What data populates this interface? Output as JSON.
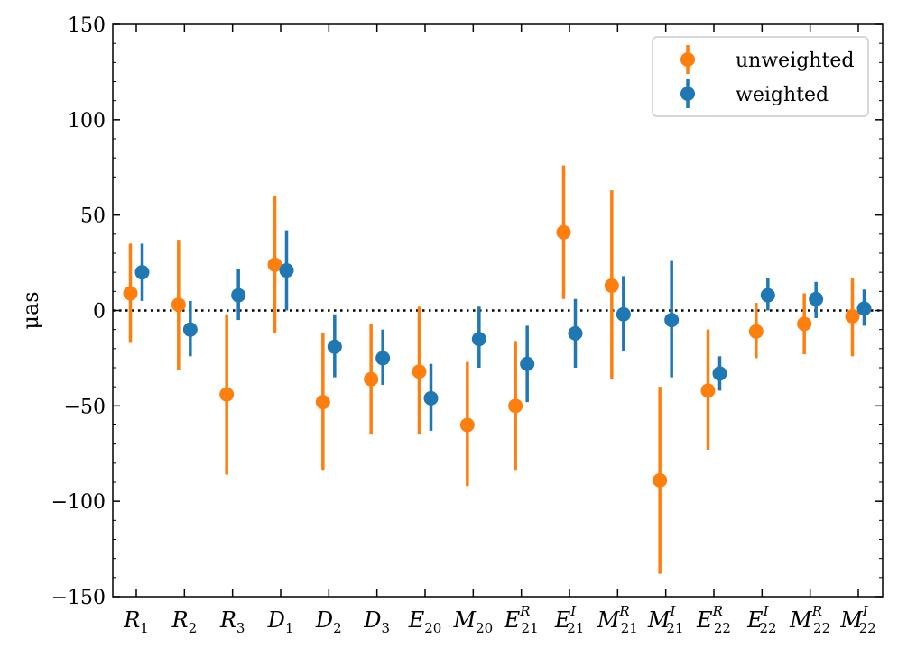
{
  "chart_data": {
    "type": "errorbar",
    "title": "",
    "xlabel": "",
    "ylabel": "μas",
    "ylim": [
      -150,
      150
    ],
    "yticks": [
      -150,
      -100,
      -50,
      0,
      50,
      100,
      150
    ],
    "ytick_labels": [
      "−150",
      "−100",
      "−50",
      "0",
      "50",
      "100",
      "150"
    ],
    "grid": false,
    "reference_line": 0,
    "legend_position": "top-right",
    "categories": [
      {
        "label": "R1",
        "base": "R",
        "sub": "1",
        "sup": ""
      },
      {
        "label": "R2",
        "base": "R",
        "sub": "2",
        "sup": ""
      },
      {
        "label": "R3",
        "base": "R",
        "sub": "3",
        "sup": ""
      },
      {
        "label": "D1",
        "base": "D",
        "sub": "1",
        "sup": ""
      },
      {
        "label": "D2",
        "base": "D",
        "sub": "2",
        "sup": ""
      },
      {
        "label": "D3",
        "base": "D",
        "sub": "3",
        "sup": ""
      },
      {
        "label": "E20",
        "base": "E",
        "sub": "20",
        "sup": ""
      },
      {
        "label": "M20",
        "base": "M",
        "sub": "20",
        "sup": ""
      },
      {
        "label": "E21R",
        "base": "E",
        "sub": "21",
        "sup": "R"
      },
      {
        "label": "E21I",
        "base": "E",
        "sub": "21",
        "sup": "I"
      },
      {
        "label": "M21R",
        "base": "M",
        "sub": "21",
        "sup": "R"
      },
      {
        "label": "M21I",
        "base": "M",
        "sub": "21",
        "sup": "I"
      },
      {
        "label": "E22R",
        "base": "E",
        "sub": "22",
        "sup": "R"
      },
      {
        "label": "E22I",
        "base": "E",
        "sub": "22",
        "sup": "I"
      },
      {
        "label": "M22R",
        "base": "M",
        "sub": "22",
        "sup": "R"
      },
      {
        "label": "M22I",
        "base": "M",
        "sub": "22",
        "sup": "I"
      }
    ],
    "series": [
      {
        "name": "unweighted",
        "color": "#ff7f0e",
        "values": [
          9,
          3,
          -44,
          24,
          -48,
          -36,
          -32,
          -60,
          -50,
          41,
          13,
          -89,
          -42,
          -11,
          -7,
          -3
        ],
        "lower": [
          -17,
          -31,
          -86,
          -12,
          -84,
          -65,
          -65,
          -92,
          -84,
          6,
          -36,
          -138,
          -73,
          -25,
          -23,
          -24
        ],
        "upper": [
          35,
          37,
          -2,
          60,
          -12,
          -7,
          2,
          -27,
          -16,
          76,
          63,
          -40,
          -10,
          4,
          9,
          17
        ]
      },
      {
        "name": "weighted",
        "color": "#1f77b4",
        "values": [
          20,
          -10,
          8,
          21,
          -19,
          -25,
          -46,
          -15,
          -28,
          -12,
          -2,
          -5,
          -33,
          8,
          6,
          1
        ],
        "lower": [
          5,
          -24,
          -5,
          0,
          -35,
          -39,
          -63,
          -30,
          -48,
          -30,
          -21,
          -35,
          -42,
          0,
          -4,
          -8
        ],
        "upper": [
          35,
          5,
          22,
          42,
          -2,
          -10,
          -28,
          2,
          -8,
          6,
          18,
          26,
          -24,
          17,
          15,
          11
        ]
      }
    ]
  }
}
